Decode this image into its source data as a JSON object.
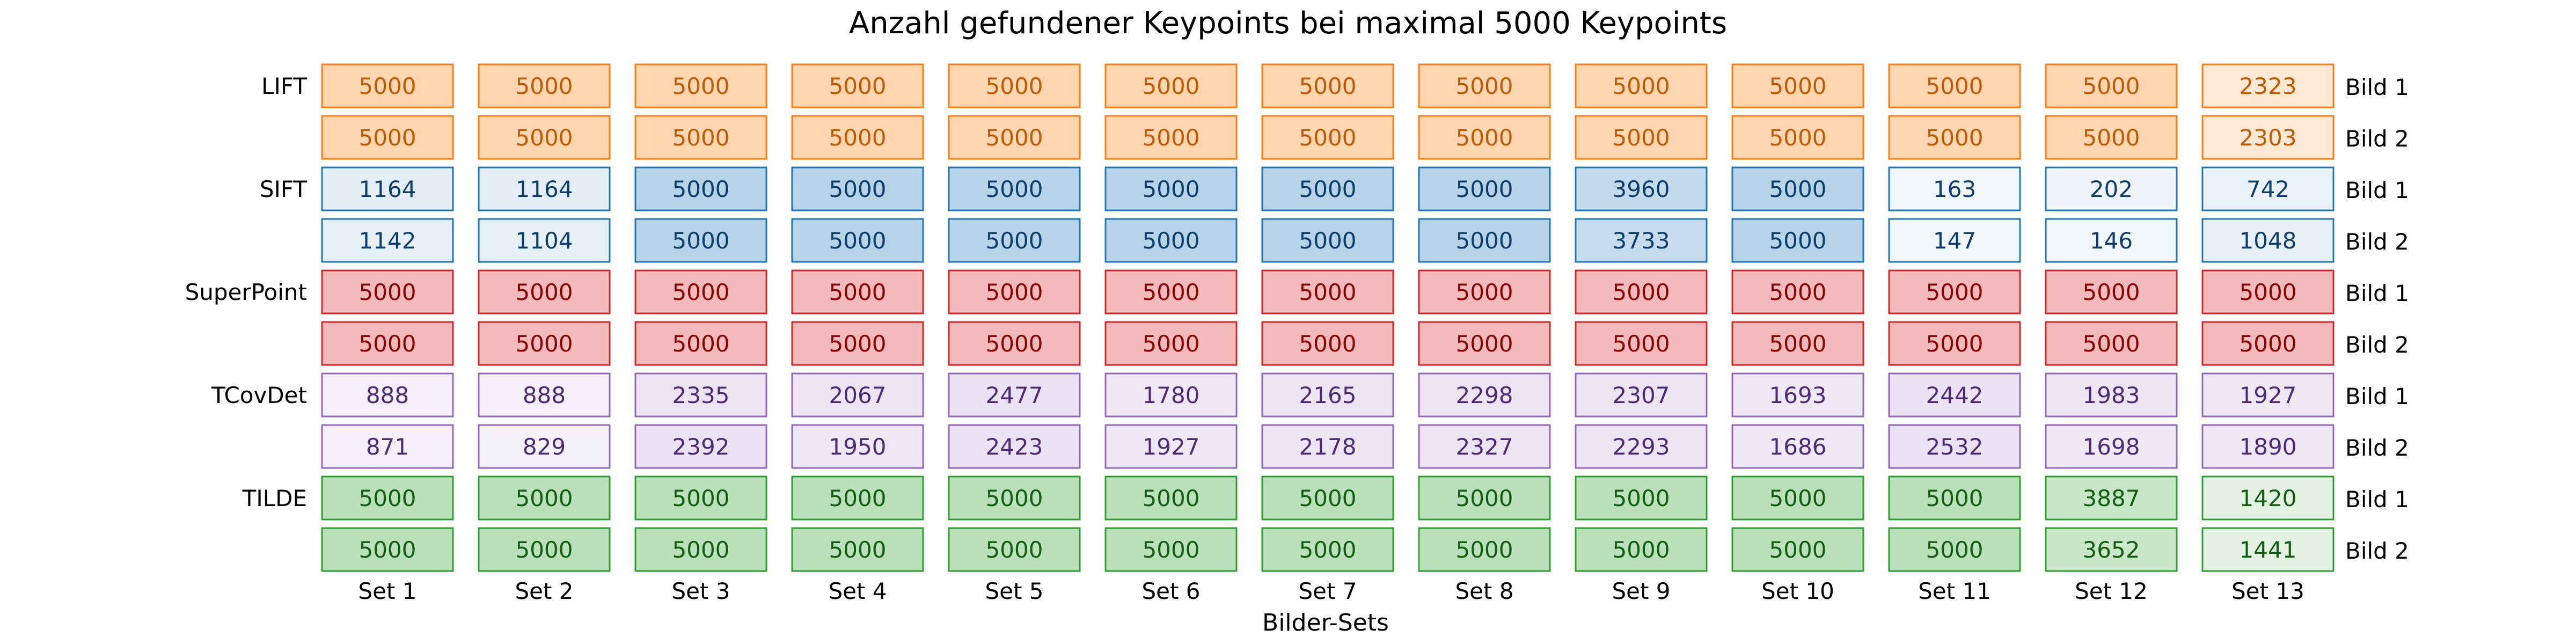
{
  "chart_data": {
    "type": "heatmap",
    "title": "Anzahl gefundener Keypoints bei maximal 5000 Keypoints",
    "xlabel": "Bilder-Sets",
    "ylabel": "",
    "max_value": 5000,
    "sets": [
      "Set 1",
      "Set 2",
      "Set 3",
      "Set 4",
      "Set 5",
      "Set 6",
      "Set 7",
      "Set 8",
      "Set 9",
      "Set 10",
      "Set 11",
      "Set 12",
      "Set 13"
    ],
    "image_labels": [
      "Bild 1",
      "Bild 2"
    ],
    "groups": [
      {
        "name": "LIFT",
        "fill": "#ff7f0e",
        "stroke": "#ff7f0e",
        "text": "#c15a00",
        "rows": [
          [
            5000,
            5000,
            5000,
            5000,
            5000,
            5000,
            5000,
            5000,
            5000,
            5000,
            5000,
            5000,
            2323
          ],
          [
            5000,
            5000,
            5000,
            5000,
            5000,
            5000,
            5000,
            5000,
            5000,
            5000,
            5000,
            5000,
            2303
          ]
        ]
      },
      {
        "name": "SIFT",
        "fill": "#1f77b4",
        "stroke": "#1f77b4",
        "text": "#0b3d6e",
        "rows": [
          [
            1164,
            1164,
            5000,
            5000,
            5000,
            5000,
            5000,
            5000,
            3960,
            5000,
            163,
            202,
            742
          ],
          [
            1142,
            1104,
            5000,
            5000,
            5000,
            5000,
            5000,
            5000,
            3733,
            5000,
            147,
            146,
            1048
          ]
        ]
      },
      {
        "name": "SuperPoint",
        "fill": "#d62728",
        "stroke": "#d62728",
        "text": "#8b0000",
        "rows": [
          [
            5000,
            5000,
            5000,
            5000,
            5000,
            5000,
            5000,
            5000,
            5000,
            5000,
            5000,
            5000,
            5000
          ],
          [
            5000,
            5000,
            5000,
            5000,
            5000,
            5000,
            5000,
            5000,
            5000,
            5000,
            5000,
            5000,
            5000
          ]
        ]
      },
      {
        "name": "TCovDet",
        "fill": "#9467bd",
        "stroke": "#9467bd",
        "text": "#4b2a7a",
        "rows": [
          [
            888,
            888,
            2335,
            2067,
            2477,
            1780,
            2165,
            2298,
            2307,
            1693,
            2442,
            1983,
            1927
          ],
          [
            871,
            829,
            2392,
            1950,
            2423,
            1927,
            2178,
            2327,
            2293,
            1686,
            2532,
            1698,
            1890
          ]
        ]
      },
      {
        "name": "TILDE",
        "fill": "#2ca02c",
        "stroke": "#2ca02c",
        "text": "#0f5f0f",
        "rows": [
          [
            5000,
            5000,
            5000,
            5000,
            5000,
            5000,
            5000,
            5000,
            5000,
            5000,
            5000,
            3887,
            1420
          ],
          [
            5000,
            5000,
            5000,
            5000,
            5000,
            5000,
            5000,
            5000,
            5000,
            5000,
            5000,
            3652,
            1441
          ]
        ]
      }
    ]
  }
}
